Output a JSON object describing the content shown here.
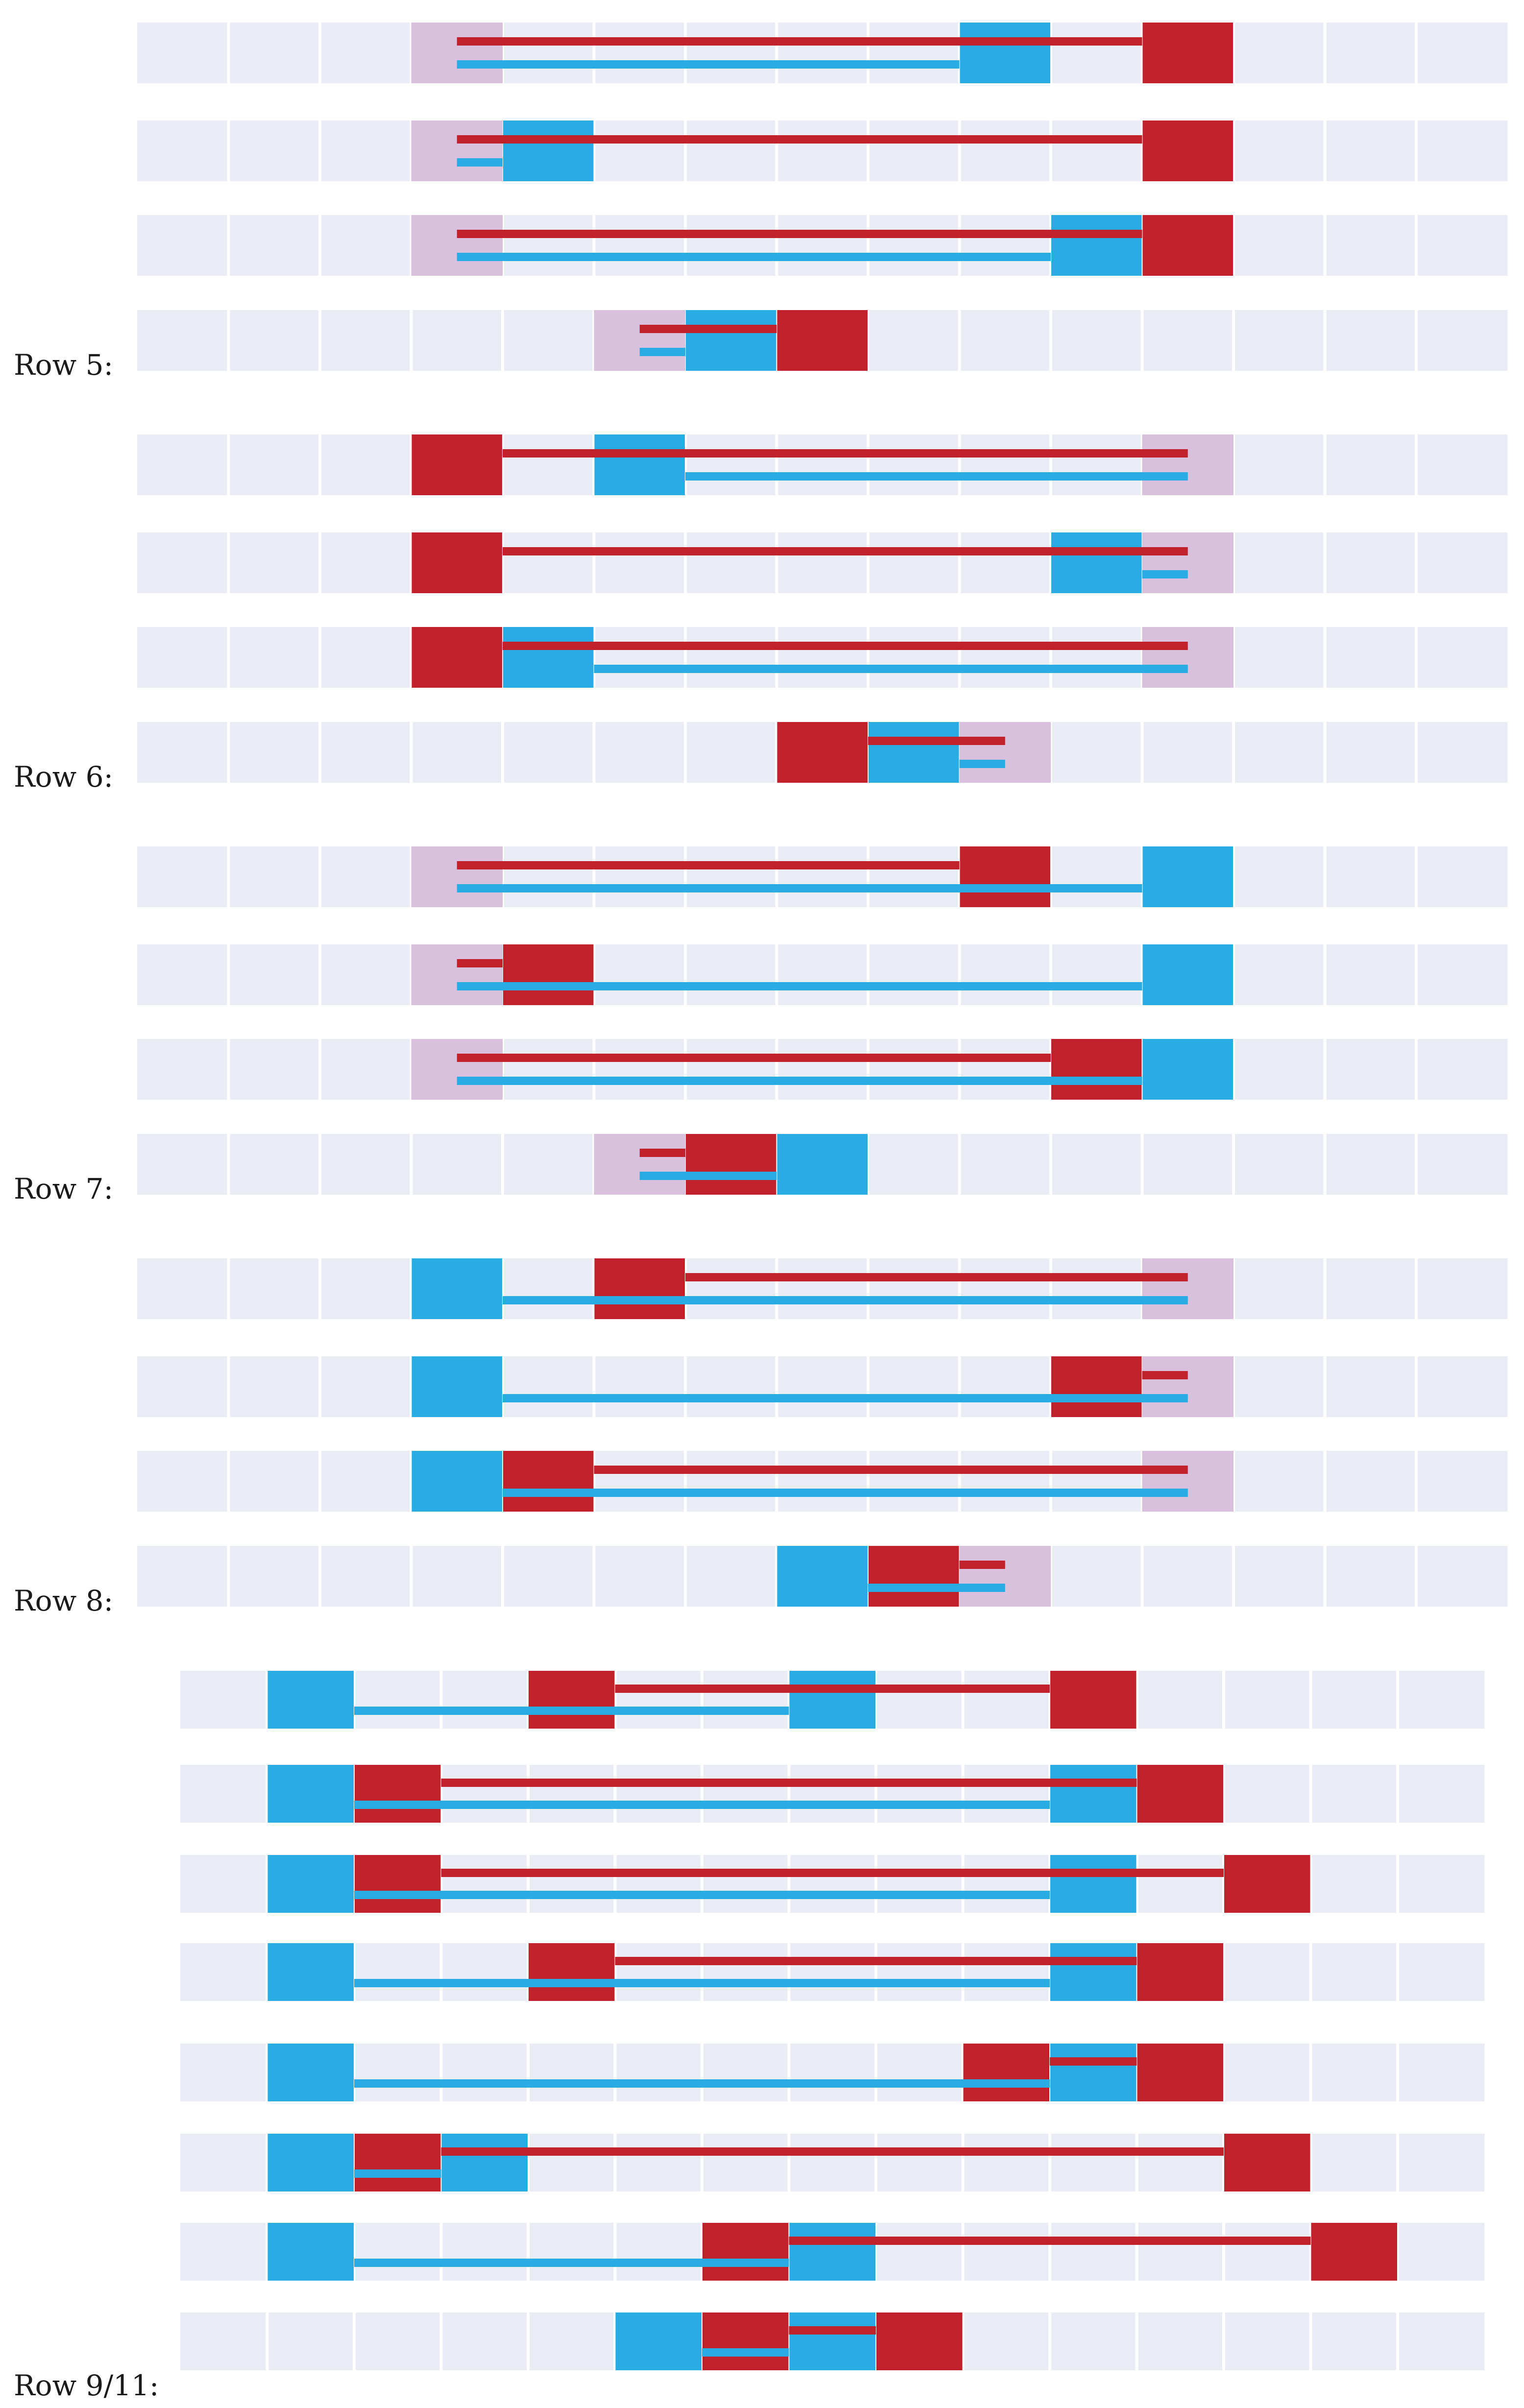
{
  "colors": {
    "track": "#eaecf5",
    "span": "#d9c0dc",
    "red": "#c1212b",
    "blue": "#29ace3"
  },
  "sections": [
    {
      "label": "Row 5:",
      "grid": "a",
      "rows": [
        {
          "span": [
            3,
            3
          ],
          "blue": [
            [
              9,
              9
            ]
          ],
          "red": [
            [
              11,
              11
            ]
          ],
          "redLine": [
            3.5,
            11
          ],
          "blueLine": [
            3.5,
            9
          ]
        },
        {
          "span": [
            3,
            3
          ],
          "blue": [
            [
              4,
              4
            ]
          ],
          "red": [
            [
              11,
              11
            ]
          ],
          "redLine": [
            3.5,
            11
          ],
          "blueLine": [
            3.5,
            4
          ]
        },
        {
          "span": [
            3,
            3
          ],
          "blue": [
            [
              10,
              10
            ]
          ],
          "red": [
            [
              11,
              11
            ]
          ],
          "redLine": [
            3.5,
            11
          ],
          "blueLine": [
            3.5,
            10
          ]
        },
        {
          "span": [
            5,
            5
          ],
          "blue": [
            [
              6,
              6
            ]
          ],
          "red": [
            [
              7,
              7
            ]
          ],
          "redLine": [
            5.5,
            7
          ],
          "blueLine": [
            5.5,
            6
          ]
        }
      ]
    },
    {
      "label": "Row 6:",
      "grid": "a",
      "rows": [
        {
          "span": [
            11,
            11
          ],
          "red": [
            [
              3,
              3
            ]
          ],
          "blue": [
            [
              5,
              5
            ]
          ],
          "redLine": [
            4,
            11.5
          ],
          "blueLine": [
            6,
            11.5
          ]
        },
        {
          "span": [
            11,
            11
          ],
          "red": [
            [
              3,
              3
            ]
          ],
          "blue": [
            [
              10,
              10
            ]
          ],
          "redLine": [
            4,
            11.5
          ],
          "blueLine": [
            11,
            11.5
          ]
        },
        {
          "span": [
            11,
            11
          ],
          "red": [
            [
              3,
              3
            ]
          ],
          "blue": [
            [
              4,
              4
            ]
          ],
          "redLine": [
            4,
            11.5
          ],
          "blueLine": [
            5,
            11.5
          ]
        },
        {
          "span": [
            9,
            9
          ],
          "red": [
            [
              7,
              7
            ]
          ],
          "blue": [
            [
              8,
              8
            ]
          ],
          "redLine": [
            8,
            9.5
          ],
          "blueLine": [
            9,
            9.5
          ]
        }
      ]
    },
    {
      "label": "Row 7:",
      "grid": "a",
      "rows": [
        {
          "span": [
            3,
            3
          ],
          "red": [
            [
              9,
              9
            ]
          ],
          "blue": [
            [
              11,
              11
            ]
          ],
          "redLine": [
            3.5,
            9
          ],
          "blueLine": [
            3.5,
            11
          ]
        },
        {
          "span": [
            3,
            3
          ],
          "red": [
            [
              4,
              4
            ]
          ],
          "blue": [
            [
              11,
              11
            ]
          ],
          "redLine": [
            3.5,
            4
          ],
          "blueLine": [
            3.5,
            11
          ]
        },
        {
          "span": [
            3,
            3
          ],
          "red": [
            [
              10,
              10
            ]
          ],
          "blue": [
            [
              11,
              11
            ]
          ],
          "redLine": [
            3.5,
            10
          ],
          "blueLine": [
            3.5,
            11
          ]
        },
        {
          "span": [
            5,
            5
          ],
          "red": [
            [
              6,
              6
            ]
          ],
          "blue": [
            [
              7,
              7
            ]
          ],
          "redLine": [
            5.5,
            6
          ],
          "blueLine": [
            5.5,
            7
          ]
        }
      ]
    },
    {
      "label": "Row 8:",
      "grid": "a",
      "rows": [
        {
          "span": [
            11,
            11
          ],
          "blue": [
            [
              3,
              3
            ]
          ],
          "red": [
            [
              5,
              5
            ]
          ],
          "redLine": [
            6,
            11.5
          ],
          "blueLine": [
            4,
            11.5
          ]
        },
        {
          "span": [
            11,
            11
          ],
          "blue": [
            [
              3,
              3
            ]
          ],
          "red": [
            [
              10,
              10
            ]
          ],
          "redLine": [
            11,
            11.5
          ],
          "blueLine": [
            4,
            11.5
          ]
        },
        {
          "span": [
            11,
            11
          ],
          "blue": [
            [
              3,
              3
            ]
          ],
          "red": [
            [
              4,
              4
            ]
          ],
          "redLine": [
            5,
            11.5
          ],
          "blueLine": [
            4,
            11.5
          ]
        },
        {
          "span": [
            9,
            9
          ],
          "blue": [
            [
              7,
              7
            ]
          ],
          "red": [
            [
              8,
              8
            ]
          ],
          "redLine": [
            9,
            9.5
          ],
          "blueLine": [
            8,
            9.5
          ]
        }
      ]
    },
    {
      "label": "Row 9/11:",
      "grid": "b",
      "rows": [
        {
          "blue": [
            [
              1,
              1
            ],
            [
              7,
              7
            ]
          ],
          "red": [
            [
              4,
              4
            ],
            [
              10,
              10
            ]
          ],
          "redLine": [
            5,
            10
          ],
          "blueLine": [
            2,
            7
          ]
        },
        {
          "blue": [
            [
              1,
              1
            ],
            [
              10,
              10
            ]
          ],
          "red": [
            [
              2,
              2
            ],
            [
              11,
              11
            ]
          ],
          "redLine": [
            3,
            11
          ],
          "blueLine": [
            2,
            10
          ]
        },
        {
          "blue": [
            [
              1,
              1
            ],
            [
              10,
              10
            ]
          ],
          "red": [
            [
              2,
              2
            ],
            [
              12,
              12
            ]
          ],
          "redLine": [
            3,
            12
          ],
          "blueLine": [
            2,
            10
          ]
        },
        {
          "blue": [
            [
              1,
              1
            ],
            [
              10,
              10
            ]
          ],
          "red": [
            [
              4,
              4
            ],
            [
              11,
              11
            ]
          ],
          "redLine": [
            5,
            11
          ],
          "blueLine": [
            2,
            10
          ]
        },
        {
          "blue": [
            [
              1,
              1
            ],
            [
              10,
              10
            ]
          ],
          "red": [
            [
              9,
              9
            ],
            [
              11,
              11
            ]
          ],
          "redLine": [
            10,
            11
          ],
          "blueLine": [
            2,
            10
          ]
        },
        {
          "blue": [
            [
              1,
              1
            ],
            [
              3,
              3
            ]
          ],
          "red": [
            [
              2,
              2
            ],
            [
              12,
              12
            ]
          ],
          "redLine": [
            3,
            12
          ],
          "blueLine": [
            2,
            3
          ]
        },
        {
          "blue": [
            [
              1,
              1
            ],
            [
              7,
              7
            ]
          ],
          "red": [
            [
              6,
              6
            ],
            [
              13,
              13
            ]
          ],
          "redLine": [
            7,
            13
          ],
          "blueLine": [
            2,
            7
          ]
        },
        {
          "blue": [
            [
              5,
              5
            ],
            [
              7,
              7
            ]
          ],
          "red": [
            [
              6,
              6
            ],
            [
              8,
              8
            ]
          ],
          "redLine": [
            7,
            8
          ],
          "blueLine": [
            6,
            7
          ]
        }
      ]
    }
  ]
}
